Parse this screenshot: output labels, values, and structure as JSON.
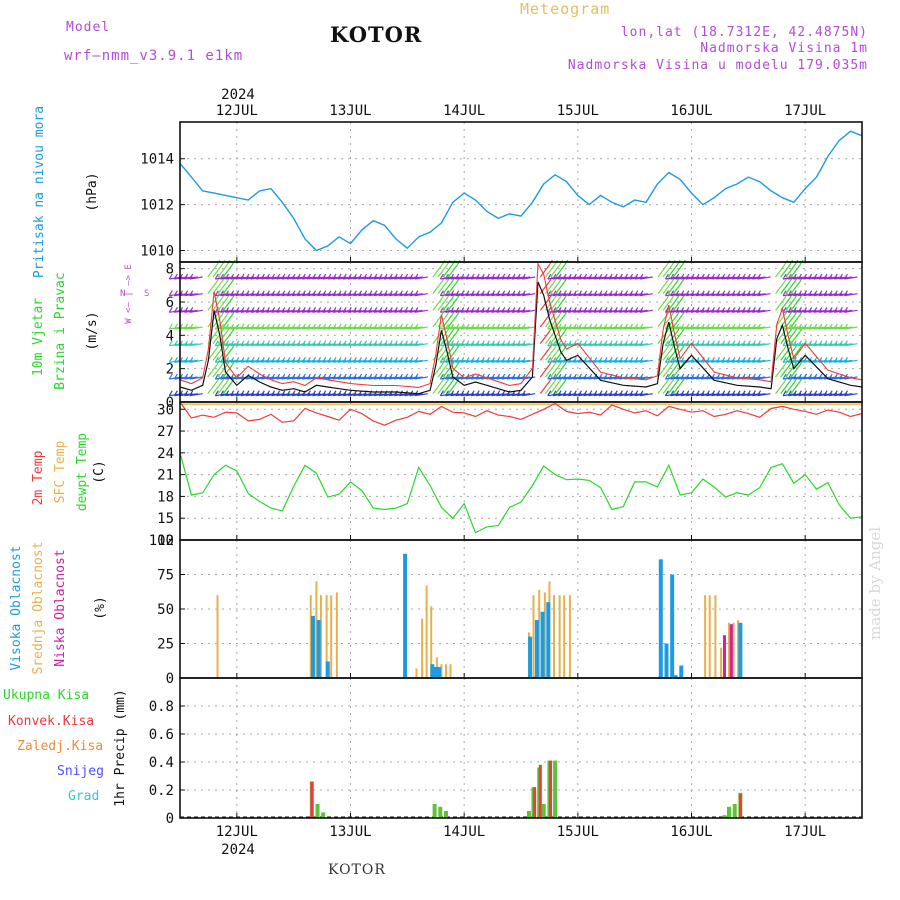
{
  "header": {
    "model_label": "Model",
    "model_name": "wrf–nmm_v3.9.1  e1km",
    "city": "KOTOR",
    "meteogram": "Meteogram",
    "coords": "lon,lat (18.7312E, 42.4875N)",
    "elevation": "Nadmorska Visina 1m",
    "model_elevation": "Nadmorska Visina u modelu 179.035m",
    "bottom_city": "KOTOR",
    "watermark": "made by Angel",
    "year_top": "2024",
    "year_bottom": "2024"
  },
  "colors": {
    "pressure": "#1e9be0",
    "temp2m": "#ee3b3b",
    "sfc_temp": "#e8b04d",
    "dewpoint": "#2ad82a",
    "high_cloud": "#1e9be0",
    "mid_cloud": "#e8b04d",
    "low_cloud": "#d01fa0",
    "total_precip": "#5ec23a",
    "conv_precip": "#ee3b3b",
    "frozen_precip": "#f08a3c",
    "snow": "#5050ff",
    "graupel": "#36c9c9",
    "violet": "#b24cd8"
  },
  "panel_labels": {
    "pressure": [
      "Pritisak na nivou mora"
    ],
    "pressure_unit": "(hPa)",
    "wind": [
      "10m  Vjetar",
      "Brzina i Pravac"
    ],
    "wind_unit": "(m/s)",
    "compass": "W  <– | –>  E",
    "compass_n": "N",
    "compass_s": "S",
    "temp": [
      "2m Temp",
      "SFC Temp",
      "dewpt Temp"
    ],
    "temp_unit": "(C)",
    "cloud": [
      "Visoka  Oblacnost",
      "Srednja  Oblacnost",
      "Niska  Oblacnost"
    ],
    "cloud_unit": "(%)",
    "precip_legend": [
      "Ukupna  Kisa",
      "Konvek.Kisa",
      "Zaledj.Kisa",
      "Snijeg",
      "Grad"
    ],
    "precip_unit": "1hr Precip (mm)"
  },
  "chart_data": [
    {
      "type": "line",
      "name": "pressure",
      "days": [
        "12JUL",
        "13JUL",
        "14JUL",
        "15JUL",
        "16JUL",
        "17JUL"
      ],
      "x_start_day": 11.5,
      "x_end_day": 17.5,
      "ylim": [
        1009.5,
        1015.6
      ],
      "yticks": [
        1010,
        1012,
        1014
      ],
      "grid": true,
      "x": [
        11.5,
        11.6,
        11.7,
        11.8,
        11.9,
        12.0,
        12.1,
        12.2,
        12.3,
        12.4,
        12.5,
        12.6,
        12.7,
        12.8,
        12.9,
        13.0,
        13.1,
        13.2,
        13.3,
        13.4,
        13.5,
        13.6,
        13.7,
        13.8,
        13.9,
        14.0,
        14.1,
        14.2,
        14.3,
        14.4,
        14.5,
        14.6,
        14.7,
        14.8,
        14.9,
        15.0,
        15.1,
        15.2,
        15.3,
        15.4,
        15.5,
        15.6,
        15.7,
        15.8,
        15.9,
        16.0,
        16.1,
        16.2,
        16.3,
        16.4,
        16.5,
        16.6,
        16.7,
        16.8,
        16.9,
        17.0,
        17.1,
        17.2,
        17.3,
        17.4,
        17.5
      ],
      "y": [
        1013.8,
        1013.2,
        1012.6,
        1012.5,
        1012.4,
        1012.3,
        1012.2,
        1012.6,
        1012.7,
        1012.1,
        1011.4,
        1010.5,
        1010.0,
        1010.2,
        1010.6,
        1010.3,
        1010.9,
        1011.3,
        1011.1,
        1010.5,
        1010.1,
        1010.6,
        1010.8,
        1011.2,
        1012.1,
        1012.5,
        1012.2,
        1011.7,
        1011.4,
        1011.6,
        1011.5,
        1012.1,
        1012.9,
        1013.3,
        1013.0,
        1012.4,
        1012.0,
        1012.4,
        1012.1,
        1011.9,
        1012.2,
        1012.1,
        1012.9,
        1013.4,
        1013.1,
        1012.5,
        1012.0,
        1012.3,
        1012.7,
        1012.9,
        1013.2,
        1013.0,
        1012.6,
        1012.3,
        1012.1,
        1012.7,
        1013.2,
        1014.1,
        1014.8,
        1015.2,
        1015.0
      ]
    },
    {
      "type": "line",
      "name": "wind",
      "ylim": [
        0,
        8.4
      ],
      "yticks": [
        0,
        2,
        4,
        6,
        8
      ],
      "grid": true,
      "barb_rows_ms": [
        0.5,
        1.5,
        2.5,
        3.5,
        4.5,
        5.5,
        6.5,
        7.5
      ],
      "x": [
        11.5,
        11.6,
        11.7,
        11.75,
        11.8,
        11.85,
        11.9,
        11.95,
        12.0,
        12.1,
        12.2,
        12.3,
        12.4,
        12.5,
        12.6,
        12.7,
        12.8,
        12.9,
        13.0,
        13.2,
        13.4,
        13.6,
        13.7,
        13.75,
        13.8,
        13.85,
        13.9,
        14.0,
        14.1,
        14.2,
        14.3,
        14.4,
        14.5,
        14.6,
        14.65,
        14.7,
        14.75,
        14.8,
        14.85,
        14.9,
        15.0,
        15.2,
        15.4,
        15.6,
        15.7,
        15.75,
        15.8,
        15.85,
        15.9,
        16.0,
        16.2,
        16.4,
        16.6,
        16.7,
        16.75,
        16.8,
        16.85,
        16.9,
        17.0,
        17.2,
        17.4,
        17.5
      ],
      "y": [
        0.9,
        0.7,
        1.0,
        2.5,
        5.5,
        4.0,
        1.8,
        1.4,
        1.0,
        1.6,
        1.2,
        0.9,
        0.7,
        0.8,
        0.6,
        1.0,
        0.9,
        0.8,
        0.7,
        0.6,
        0.6,
        0.5,
        0.7,
        2.2,
        4.3,
        3.0,
        1.5,
        1.0,
        1.2,
        1.0,
        0.8,
        0.6,
        0.7,
        1.5,
        7.2,
        6.4,
        5.0,
        4.0,
        3.0,
        2.5,
        2.8,
        1.3,
        1.0,
        0.9,
        1.1,
        3.5,
        4.8,
        3.3,
        2.0,
        2.8,
        1.3,
        1.0,
        0.9,
        0.8,
        3.8,
        4.6,
        3.2,
        2.0,
        2.8,
        1.4,
        1.0,
        0.9
      ]
    },
    {
      "type": "line",
      "name": "temperature",
      "ylim": [
        12,
        31
      ],
      "yticks": [
        12,
        15,
        18,
        21,
        24,
        27,
        30
      ],
      "grid": true,
      "sfc_temp": 30.7,
      "x": [
        11.5,
        11.6,
        11.7,
        11.8,
        11.9,
        12.0,
        12.1,
        12.2,
        12.3,
        12.4,
        12.5,
        12.6,
        12.7,
        12.8,
        12.9,
        13.0,
        13.1,
        13.2,
        13.3,
        13.4,
        13.5,
        13.6,
        13.7,
        13.8,
        13.9,
        14.0,
        14.1,
        14.2,
        14.3,
        14.4,
        14.5,
        14.6,
        14.7,
        14.8,
        14.9,
        15.0,
        15.1,
        15.2,
        15.3,
        15.4,
        15.5,
        15.6,
        15.7,
        15.8,
        15.9,
        16.0,
        16.1,
        16.2,
        16.3,
        16.4,
        16.5,
        16.6,
        16.7,
        16.8,
        16.9,
        17.0,
        17.1,
        17.2,
        17.3,
        17.4,
        17.5
      ],
      "t2m": [
        31.0,
        28.8,
        29.2,
        28.9,
        29.6,
        29.5,
        28.4,
        28.6,
        29.3,
        28.2,
        28.4,
        30.1,
        29.5,
        29.0,
        28.5,
        30.0,
        29.4,
        28.4,
        27.8,
        28.5,
        28.9,
        29.7,
        29.3,
        30.4,
        29.6,
        29.5,
        29.0,
        29.8,
        29.2,
        29.0,
        28.6,
        29.3,
        30.0,
        30.8,
        29.7,
        29.4,
        29.6,
        29.2,
        30.6,
        30.0,
        29.5,
        29.8,
        29.1,
        30.4,
        30.0,
        29.6,
        29.8,
        29.0,
        29.3,
        29.8,
        29.4,
        28.9,
        30.1,
        30.4,
        30.0,
        29.7,
        29.3,
        29.9,
        29.6,
        29.0,
        29.4
      ],
      "dewpoint": [
        24.0,
        18.2,
        18.5,
        21.0,
        22.3,
        21.5,
        18.4,
        17.3,
        16.4,
        16.0,
        19.4,
        22.3,
        21.2,
        17.9,
        18.3,
        20.0,
        18.8,
        16.4,
        16.2,
        16.4,
        17.0,
        22.0,
        19.5,
        16.5,
        15.0,
        17.0,
        13.0,
        13.8,
        14.0,
        16.5,
        17.2,
        19.5,
        22.2,
        21.0,
        20.3,
        20.4,
        20.2,
        19.2,
        16.2,
        16.6,
        20.0,
        20.0,
        19.3,
        22.3,
        18.2,
        18.5,
        20.4,
        19.3,
        17.9,
        18.5,
        18.2,
        19.2,
        22.0,
        22.5,
        19.8,
        21.0,
        19.0,
        19.9,
        16.8,
        15.0,
        15.2
      ]
    },
    {
      "type": "bar",
      "name": "cloud_cover",
      "ylim": [
        0,
        100
      ],
      "yticks": [
        0,
        25,
        50,
        75,
        100
      ],
      "grid": true,
      "high": [
        {
          "x": 12.67,
          "v": 45
        },
        {
          "x": 12.72,
          "v": 42
        },
        {
          "x": 12.8,
          "v": 12
        },
        {
          "x": 13.48,
          "v": 90
        },
        {
          "x": 13.72,
          "v": 10
        },
        {
          "x": 13.75,
          "v": 8
        },
        {
          "x": 13.78,
          "v": 8
        },
        {
          "x": 14.58,
          "v": 30
        },
        {
          "x": 14.64,
          "v": 42
        },
        {
          "x": 14.69,
          "v": 48
        },
        {
          "x": 14.74,
          "v": 55
        },
        {
          "x": 15.73,
          "v": 86
        },
        {
          "x": 15.78,
          "v": 25
        },
        {
          "x": 15.83,
          "v": 75
        },
        {
          "x": 15.91,
          "v": 9
        },
        {
          "x": 15.86,
          "v": 2
        },
        {
          "x": 16.43,
          "v": 40
        }
      ],
      "mid": [
        {
          "x": 11.83,
          "v": 60
        },
        {
          "x": 12.65,
          "v": 60
        },
        {
          "x": 12.7,
          "v": 70
        },
        {
          "x": 12.74,
          "v": 60
        },
        {
          "x": 12.79,
          "v": 60
        },
        {
          "x": 12.83,
          "v": 60
        },
        {
          "x": 12.88,
          "v": 62
        },
        {
          "x": 13.58,
          "v": 7
        },
        {
          "x": 13.63,
          "v": 43
        },
        {
          "x": 13.67,
          "v": 67
        },
        {
          "x": 13.71,
          "v": 52
        },
        {
          "x": 13.76,
          "v": 15
        },
        {
          "x": 13.8,
          "v": 10
        },
        {
          "x": 13.84,
          "v": 10
        },
        {
          "x": 13.88,
          "v": 10
        },
        {
          "x": 14.57,
          "v": 33
        },
        {
          "x": 14.61,
          "v": 60
        },
        {
          "x": 14.66,
          "v": 64
        },
        {
          "x": 14.71,
          "v": 62
        },
        {
          "x": 14.75,
          "v": 70
        },
        {
          "x": 14.79,
          "v": 60
        },
        {
          "x": 14.84,
          "v": 60
        },
        {
          "x": 14.88,
          "v": 60
        },
        {
          "x": 14.93,
          "v": 60
        },
        {
          "x": 16.12,
          "v": 60
        },
        {
          "x": 16.16,
          "v": 60
        },
        {
          "x": 16.21,
          "v": 60
        },
        {
          "x": 16.26,
          "v": 22
        },
        {
          "x": 16.33,
          "v": 40
        },
        {
          "x": 16.37,
          "v": 40
        },
        {
          "x": 16.41,
          "v": 42
        }
      ],
      "low": [
        {
          "x": 16.29,
          "v": 31
        },
        {
          "x": 16.35,
          "v": 39
        }
      ]
    },
    {
      "type": "bar",
      "name": "precipitation",
      "ylim": [
        0,
        1.0
      ],
      "yticks": [
        0,
        0.2,
        0.4,
        0.6,
        0.8
      ],
      "grid": true,
      "total": [
        {
          "x": 12.66,
          "v": 0.26
        },
        {
          "x": 12.71,
          "v": 0.1
        },
        {
          "x": 12.76,
          "v": 0.04
        },
        {
          "x": 13.74,
          "v": 0.1
        },
        {
          "x": 13.79,
          "v": 0.08
        },
        {
          "x": 13.84,
          "v": 0.05
        },
        {
          "x": 14.57,
          "v": 0.05
        },
        {
          "x": 14.61,
          "v": 0.22
        },
        {
          "x": 14.66,
          "v": 0.36
        },
        {
          "x": 14.7,
          "v": 0.1
        },
        {
          "x": 14.75,
          "v": 0.41
        },
        {
          "x": 14.8,
          "v": 0.41
        },
        {
          "x": 16.29,
          "v": 0.02
        },
        {
          "x": 16.33,
          "v": 0.08
        },
        {
          "x": 16.38,
          "v": 0.1
        },
        {
          "x": 16.43,
          "v": 0.18
        }
      ],
      "convective": [
        {
          "x": 12.66,
          "v": 0.26
        },
        {
          "x": 14.62,
          "v": 0.22
        },
        {
          "x": 14.67,
          "v": 0.38
        },
        {
          "x": 14.76,
          "v": 0.41
        },
        {
          "x": 16.43,
          "v": 0.17
        }
      ]
    }
  ]
}
